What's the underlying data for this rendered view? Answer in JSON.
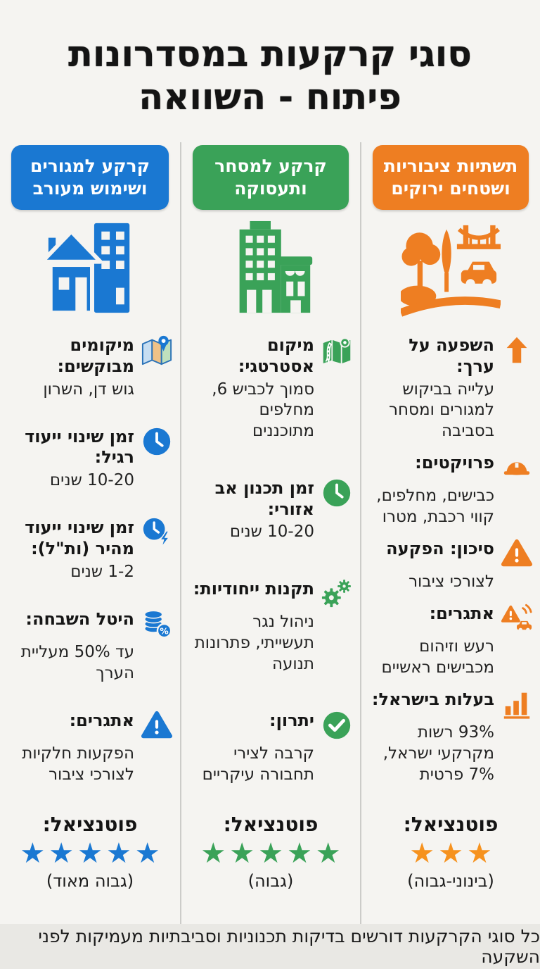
{
  "title": {
    "line1": "סוגי קרקעות במסדרונות",
    "line2": "פיתוח - השוואה"
  },
  "labels": {
    "potential": "פוטנציאל:",
    "star": "★"
  },
  "columns": [
    {
      "id": "residential-mixed-use",
      "header": "קרקע למגורים ושימוש מעורב",
      "color": "#1a78d2",
      "star_color": "#1a78d2",
      "hero_icon": "house-building-icon",
      "items": [
        {
          "icon": "map-pin-icon",
          "label": "מיקומים מבוקשים:",
          "text": "גוש דן, השרון"
        },
        {
          "icon": "clock-icon",
          "label": "זמן שינוי ייעוד רגיל:",
          "text": "10-20 שנים"
        },
        {
          "icon": "clock-lightning-icon",
          "label": "זמן שינוי ייעוד מהיר (ות\"ל):",
          "text": "1-2 שנים"
        },
        {
          "icon": "coins-percent-icon",
          "label": "היטל השבחה:",
          "text": "עד 50% מעליית הערך"
        },
        {
          "icon": "warning-triangle-icon",
          "label": "אתגרים:",
          "text": "הפקעות חלקיות לצורכי ציבור"
        }
      ],
      "stars": 5,
      "rating_note": "(גבוה מאוד)"
    },
    {
      "id": "commerce-employment",
      "header": "קרקע למסחר ותעסוקה",
      "color": "#3aa258",
      "star_color": "#3aa258",
      "hero_icon": "office-storefront-icon",
      "items": [
        {
          "icon": "road-map-icon",
          "label": "מיקום אסטרטגי:",
          "text": "סמוך לכביש 6, מחלפים מתוכננים"
        },
        {
          "icon": "clock-icon",
          "label": "זמן תכנון אב אזורי:",
          "text": "10-20 שנים"
        },
        {
          "icon": "gears-icon",
          "label": "תקנות ייחודיות:",
          "text": "ניהול נגר תעשייתי, פתרונות תנועה"
        },
        {
          "icon": "check-circle-icon",
          "label": "יתרון:",
          "text": "קרבה לצירי תחבורה עיקריים"
        }
      ],
      "stars": 5,
      "rating_note": "(גבוה)"
    },
    {
      "id": "public-infrastructure-green",
      "header": "תשתיות ציבוריות ושטחים ירוקים",
      "color": "#ee7e22",
      "star_color": "#f6921e",
      "hero_icon": "park-bridge-car-icon",
      "items": [
        {
          "icon": "up-arrow-icon",
          "label": "השפעה על ערך:",
          "text": "עלייה בביקוש למגורים ומסחר בסביבה"
        },
        {
          "icon": "hard-hat-icon",
          "label": "פרויקטים:",
          "text": "כבישים, מחלפים, קווי רכבת, מטרו"
        },
        {
          "icon": "warning-triangle-icon",
          "label": "סיכון: הפקעה",
          "text": "לצורכי ציבור"
        },
        {
          "icon": "car-noise-warning-icon",
          "label": "אתגרים:",
          "text": "רעש וזיהום מכבישים ראשיים"
        },
        {
          "icon": "bar-chart-icon",
          "label": "בעלות בישראל:",
          "text": "93% רשות מקרקעי ישראל, 7% פרטית"
        }
      ],
      "stars": 3,
      "rating_note": "(בינוני-גבוה)"
    }
  ],
  "footer": "כל סוגי הקרקעות דורשים בדיקות תכנוניות וסביבתיות מעמיקות לפני השקעה"
}
